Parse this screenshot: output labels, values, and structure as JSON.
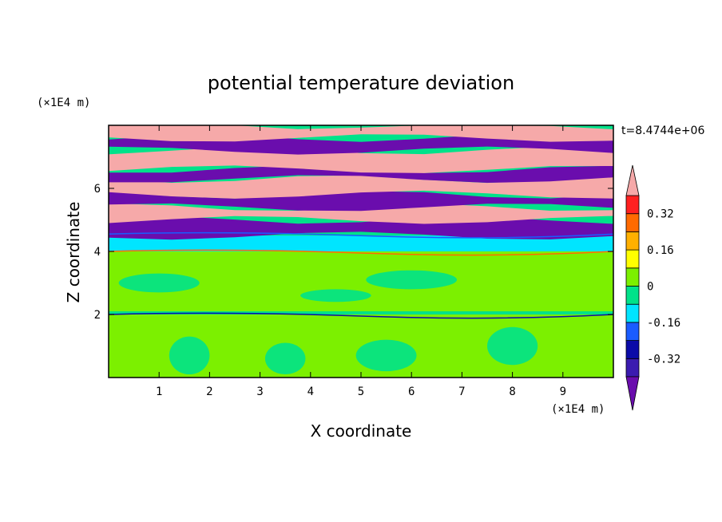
{
  "chart_data": {
    "type": "heatmap",
    "title": "potential temperature deviation",
    "time_label": "t=8.4744e+06",
    "xlabel": "X coordinate",
    "ylabel": "Z coordinate",
    "x_unit": "(×1E4 m)",
    "y_unit": "(×1E4 m)",
    "xlim": [
      0,
      10
    ],
    "ylim": [
      0,
      8
    ],
    "x_ticks": [
      1,
      2,
      3,
      4,
      5,
      6,
      7,
      8,
      9
    ],
    "y_ticks": [
      2,
      4,
      6
    ],
    "colorbar": {
      "labels": [
        "0.32",
        "0.16",
        "0",
        "-0.16",
        "-0.32"
      ],
      "label_values": [
        0.32,
        0.16,
        0,
        -0.16,
        -0.32
      ],
      "levels": [
        -0.4,
        -0.32,
        -0.24,
        -0.16,
        -0.08,
        0,
        0.08,
        0.16,
        0.24,
        0.32,
        0.4
      ],
      "colors": [
        "#6a0dad",
        "#3b1bb0",
        "#0b0ba8",
        "#1a5cff",
        "#00e5ff",
        "#00e28a",
        "#7cf000",
        "#ffff00",
        "#ffb000",
        "#ff6a00",
        "#ff2020",
        "#f6a9a9"
      ],
      "extend": "both"
    },
    "bands": [
      {
        "z_from": 0,
        "z_to": 2.0,
        "value": 0.04
      },
      {
        "z_from": 2.0,
        "z_to": 2.1,
        "value": -0.06
      },
      {
        "z_from": 2.1,
        "z_to": 4.0,
        "value": 0.02
      },
      {
        "z_from": 4.0,
        "z_to": 4.5,
        "value": -0.1
      },
      {
        "z_from": 4.5,
        "z_to": 5.0,
        "value": -0.42
      },
      {
        "z_from": 5.0,
        "z_to": 5.4,
        "value": 0.42
      },
      {
        "z_from": 5.4,
        "z_to": 5.8,
        "value": -0.42
      },
      {
        "z_from": 5.8,
        "z_to": 6.3,
        "value": 0.42
      },
      {
        "z_from": 6.3,
        "z_to": 6.6,
        "value": -0.42
      },
      {
        "z_from": 6.6,
        "z_to": 7.2,
        "value": 0.42
      },
      {
        "z_from": 7.2,
        "z_to": 7.6,
        "value": -0.42
      },
      {
        "z_from": 7.6,
        "z_to": 8.0,
        "value": 0.42
      }
    ]
  }
}
